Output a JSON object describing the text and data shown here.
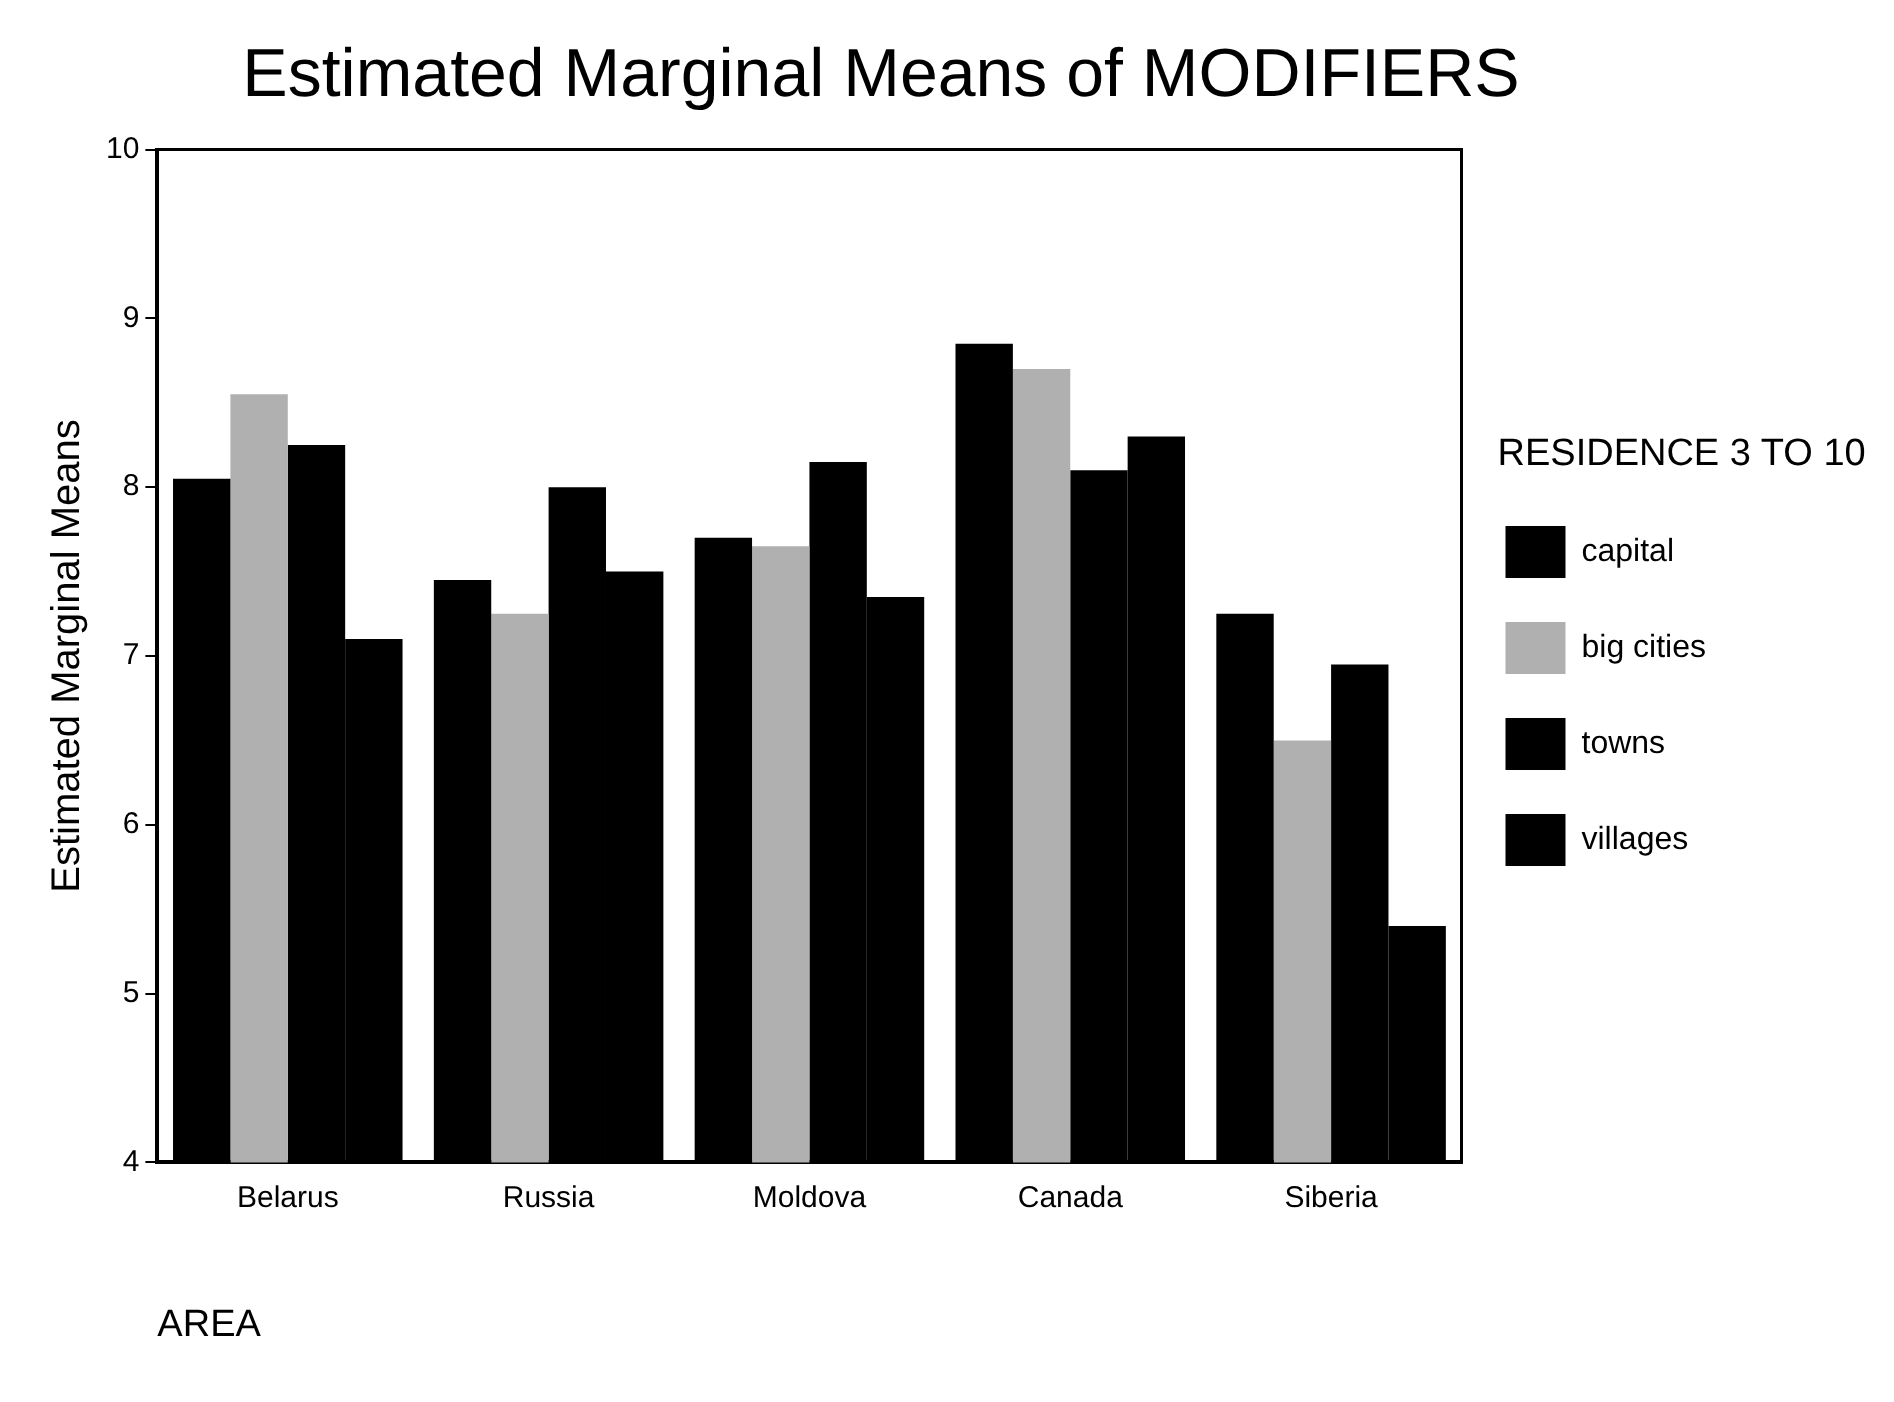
{
  "chart_data": {
    "type": "bar",
    "title": "Estimated Marginal Means of MODIFIERS",
    "xlabel": "AREA",
    "ylabel": "Estimated Marginal Means",
    "legend_title": "RESIDENCE 3 TO 10",
    "categories": [
      "Belarus",
      "Russia",
      "Moldova",
      "Canada",
      "Siberia"
    ],
    "series": [
      {
        "name": "capital",
        "color": "#000000",
        "values": [
          8.05,
          7.45,
          7.7,
          8.85,
          7.25
        ]
      },
      {
        "name": "big cities",
        "color": "#b0b0b0",
        "values": [
          8.55,
          7.25,
          7.65,
          8.7,
          6.5
        ]
      },
      {
        "name": "towns",
        "color": "#000000",
        "values": [
          8.25,
          8.0,
          8.15,
          8.1,
          6.95
        ]
      },
      {
        "name": "villages",
        "color": "#000000",
        "values": [
          7.1,
          7.5,
          7.35,
          8.3,
          5.4
        ]
      }
    ],
    "ylim": [
      4,
      10
    ],
    "yticks": [
      4,
      5,
      6,
      7,
      8,
      9,
      10
    ],
    "grid": false,
    "legend": "right"
  }
}
